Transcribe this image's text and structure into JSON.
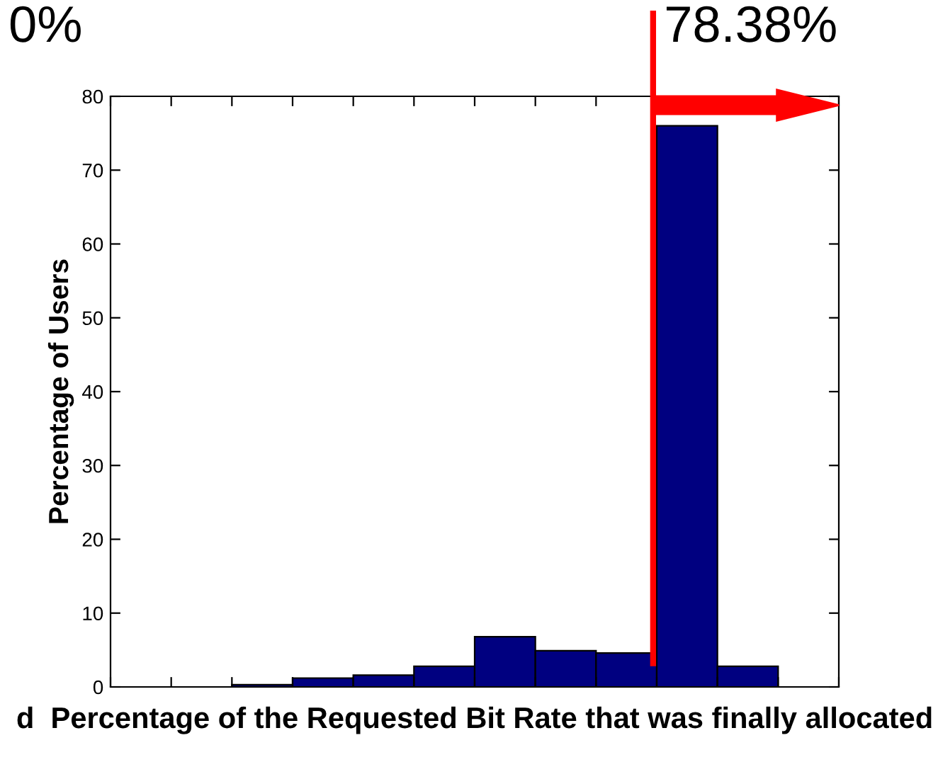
{
  "chart_data": {
    "type": "bar",
    "categories": [
      null,
      null,
      null,
      null,
      null,
      null,
      null,
      null,
      null,
      null,
      null,
      null
    ],
    "values": [
      0,
      0,
      0.3,
      1.2,
      1.6,
      2.8,
      6.8,
      4.9,
      4.6,
      76,
      2.8,
      0
    ],
    "color": "#000080",
    "xlabel": "d  Percentage of the Requested Bit Rate that was finally allocated",
    "ylabel": "Percentage of Users",
    "ylim": [
      0,
      80
    ],
    "yticks": [
      0,
      10,
      20,
      30,
      40,
      50,
      60,
      70,
      80
    ],
    "annotations": [
      "0%",
      "78.38%"
    ],
    "grid": false,
    "legend": false,
    "tick_labels": "y"
  }
}
